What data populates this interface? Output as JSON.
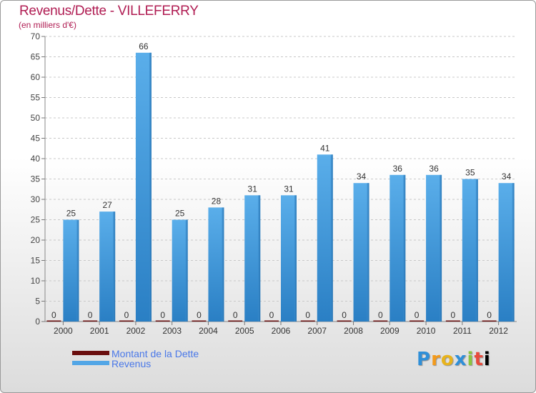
{
  "title": "Revenus/Dette - VILLEFERRY",
  "subtitle": "(en milliers d'€)",
  "brand": "Proxiti",
  "colors": {
    "debt": "#6b0f0f",
    "revenue": "#52a6e6",
    "title": "#b01d53",
    "legend_text": "#4a78e8"
  },
  "chart_data": {
    "type": "bar",
    "title": "Revenus/Dette - VILLEFERRY",
    "ylabel": "(en milliers d'€)",
    "xlabel": "",
    "ylim": [
      0,
      70
    ],
    "yticks": [
      0,
      5,
      10,
      15,
      20,
      25,
      30,
      35,
      40,
      45,
      50,
      55,
      60,
      65,
      70
    ],
    "grid": true,
    "legend_position": "bottom-left",
    "categories": [
      "2000",
      "2001",
      "2002",
      "2003",
      "2004",
      "2005",
      "2006",
      "2007",
      "2008",
      "2009",
      "2010",
      "2011",
      "2012"
    ],
    "series": [
      {
        "name": "Montant de la Dette",
        "values": [
          0,
          0,
          0,
          0,
          0,
          0,
          0,
          0,
          0,
          0,
          0,
          0,
          0
        ]
      },
      {
        "name": "Revenus",
        "values": [
          25,
          27,
          66,
          25,
          28,
          31,
          31,
          41,
          34,
          36,
          36,
          35,
          34
        ]
      }
    ]
  }
}
